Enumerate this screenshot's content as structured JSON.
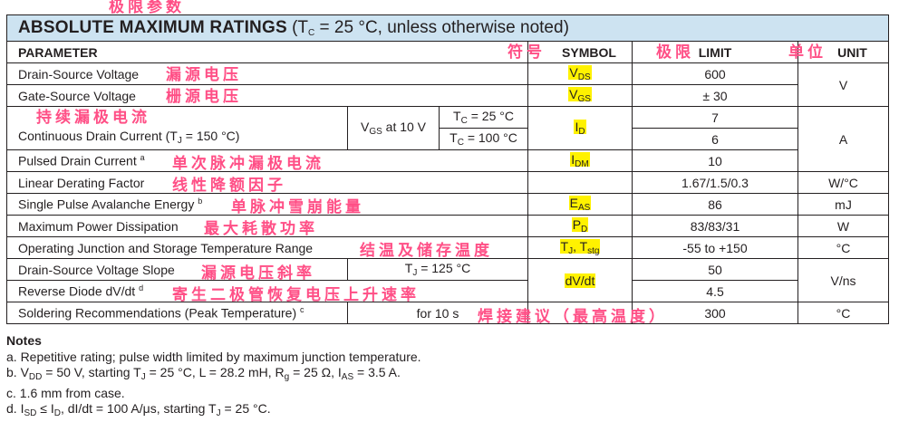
{
  "title": {
    "main": "ABSOLUTE MAXIMUM RATINGS",
    "cond_pre": "(T",
    "cond_sub": "C",
    "cond_post": " = 25 °C, unless otherwise noted)"
  },
  "headers": {
    "parameter": "PARAMETER",
    "symbol": "SYMBOL",
    "limit": "LIMIT",
    "unit": "UNIT"
  },
  "rows": {
    "vds": {
      "param": "Drain-Source Voltage",
      "sym": "V",
      "sub": "DS",
      "limit": "600"
    },
    "vgs": {
      "param": "Gate-Source Voltage",
      "sym": "V",
      "sub": "GS",
      "limit": "± 30"
    },
    "v_unit": "V",
    "id": {
      "param": "Continuous Drain Current (T",
      "param_sub": "J",
      "param_post": " = 150 °C)",
      "cond": "at 10 V",
      "cond_sym": "V",
      "cond_sub": "GS",
      "tc1_pre": "T",
      "tc1_sub": "C",
      "tc1_post": " = 25 °C",
      "tc2_pre": "T",
      "tc2_sub": "C",
      "tc2_post": " = 100 °C",
      "sym": "I",
      "sub": "D",
      "limit1": "7",
      "limit2": "6"
    },
    "a_unit": "A",
    "idm": {
      "param": "Pulsed Drain Current",
      "note": "a",
      "sym": "I",
      "sub": "DM",
      "limit": "10"
    },
    "ldf": {
      "param": "Linear Derating Factor",
      "limit": "1.67/1.5/0.3",
      "unit": "W/°C"
    },
    "eas": {
      "param": "Single Pulse Avalanche Energy",
      "note": "b",
      "sym": "E",
      "sub": "AS",
      "limit": "86",
      "unit": "mJ"
    },
    "pd": {
      "param": "Maximum Power Dissipation",
      "sym": "P",
      "sub": "D",
      "limit": "83/83/31",
      "unit": "W"
    },
    "tj": {
      "param": "Operating Junction and Storage Temperature Range",
      "sym": "T",
      "sub": "J",
      "sym2": ", T",
      "sub2": "stg",
      "limit": "-55 to +150",
      "unit": "°C"
    },
    "dvdt": {
      "param": "Drain-Source Voltage Slope",
      "cond_pre": "T",
      "cond_sub": "J",
      "cond_post": " = 125 °C",
      "sym": "dV/dt",
      "limit": "50"
    },
    "rdvdt": {
      "param": "Reverse Diode dV/dt",
      "note": "d",
      "limit": "4.5"
    },
    "vns_unit": "V/ns",
    "solder": {
      "param": "Soldering Recommendations (Peak Temperature)",
      "note": "c",
      "cond": "for 10 s",
      "limit": "300",
      "unit": "°C"
    }
  },
  "annotations": {
    "title": "极限参数",
    "symbol": "符号",
    "limit": "极限",
    "unit": "单位",
    "vds": "漏源电压",
    "vgs": "栅源电压",
    "id": "持续漏极电流",
    "idm": "单次脉冲漏极电流",
    "ldf": "线性降额因子",
    "eas": "单脉冲雪崩能量",
    "pd": "最大耗散功率",
    "tj": "结温及储存温度",
    "dvdt": "漏源电压斜率",
    "rdvdt": "寄生二极管恢复电压上升速率",
    "solder": "焊接建议（最高温度）"
  },
  "notes": {
    "heading": "Notes",
    "a": "a.  Repetitive rating; pulse width limited by maximum junction temperature.",
    "b": "b.  V<sub>DD</sub> = 50 V, starting T<sub>J</sub> = 25 °C, L = 28.2 mH, R<sub>g</sub> = 25 Ω, I<sub>AS</sub> = 3.5 A.",
    "c": "c.  1.6 mm from case.",
    "d": "d.  I<sub>SD</sub> ≤ I<sub>D</sub>, dI/dt = 100 A/μs, starting T<sub>J</sub> = 25 °C."
  },
  "colors": {
    "header_bg": "#cde3f1",
    "highlight": "#fff200",
    "annotation": "#ff4f86"
  }
}
